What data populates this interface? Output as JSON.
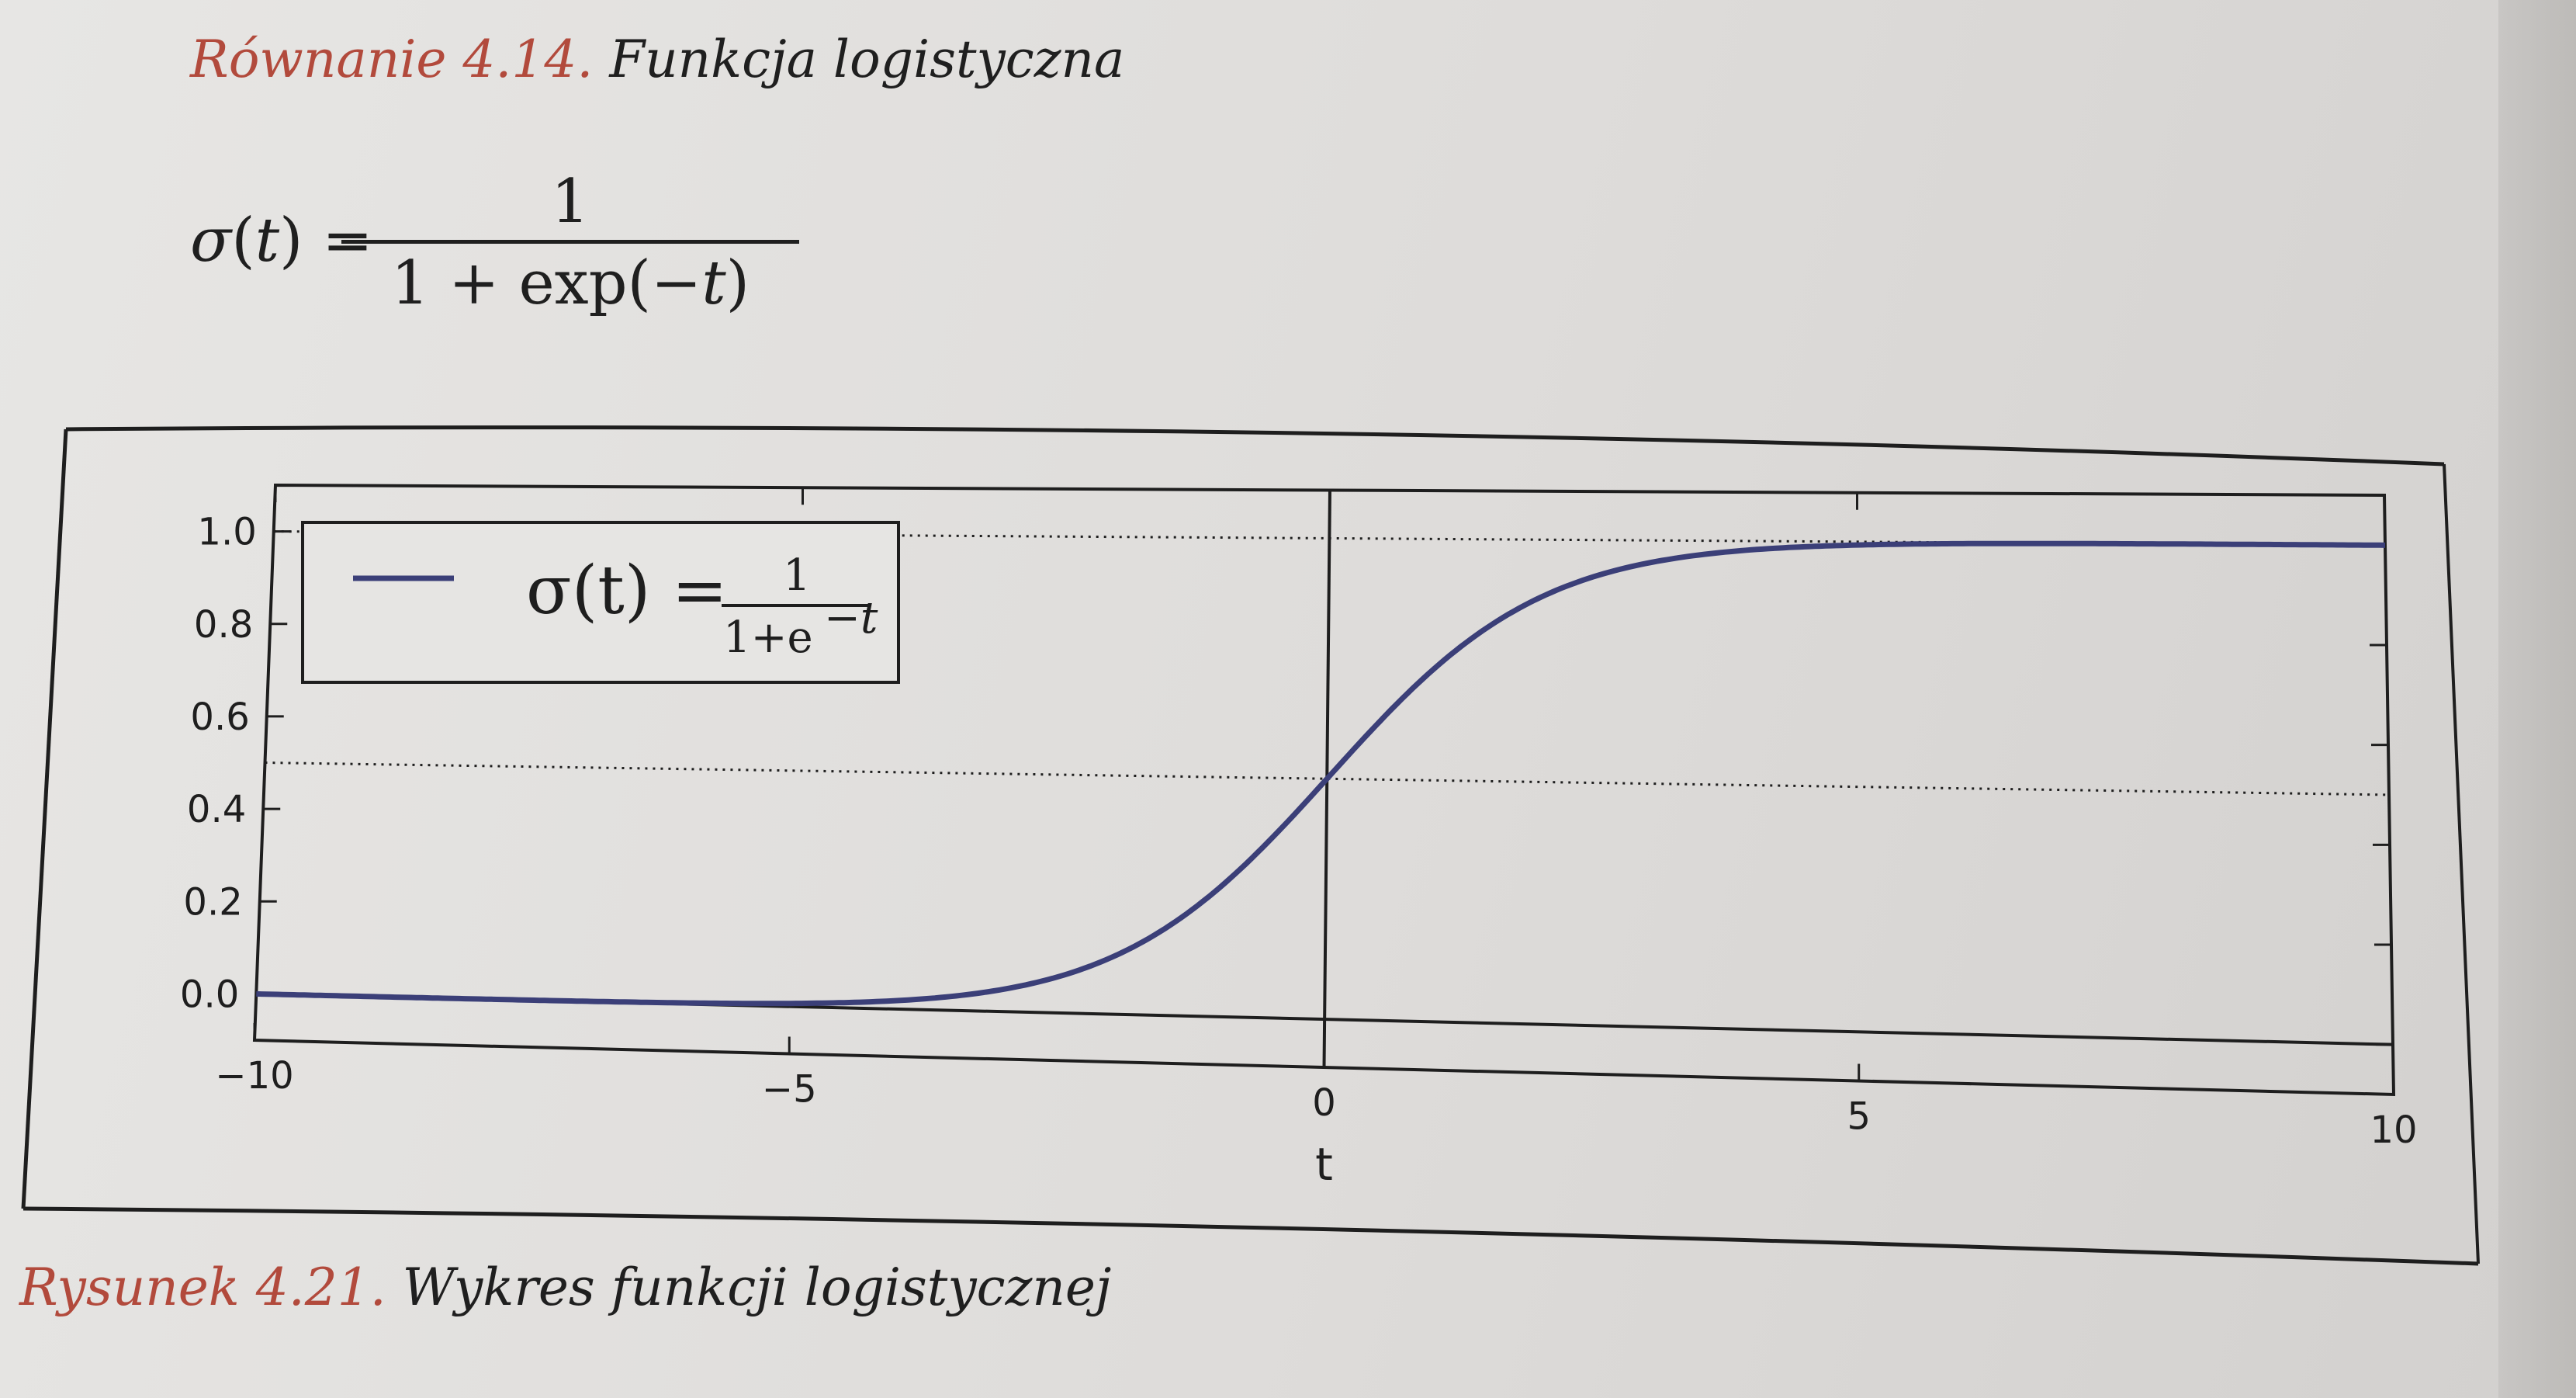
{
  "equation_caption": {
    "number": "Równanie 4.14.",
    "title": "Funkcja logistyczna"
  },
  "equation": {
    "lhs_symbol": "σ",
    "lhs_arg": "t",
    "numerator": "1",
    "denominator_prefix": "1 + exp(−",
    "denominator_arg": "t",
    "denominator_suffix": ")"
  },
  "figure": {
    "caption_number": "Rysunek 4.21.",
    "caption_title": "Wykres funkcji logistycznej"
  },
  "chart_data": {
    "type": "line",
    "title": "",
    "xlabel": "t",
    "ylabel": "",
    "xlim": [
      -10,
      10
    ],
    "ylim": [
      -0.1,
      1.1
    ],
    "x_ticks": [
      -10,
      -5,
      0,
      5,
      10
    ],
    "x_tick_labels": [
      "−10",
      "−5",
      "0",
      "5",
      "10"
    ],
    "y_ticks": [
      0.0,
      0.2,
      0.4,
      0.6,
      0.8,
      1.0
    ],
    "y_tick_labels": [
      "0.0",
      "0.2",
      "0.4",
      "0.6",
      "0.8",
      "1.0"
    ],
    "legend_placement": "upper-left",
    "series": [
      {
        "name": "σ(t) = 1 / (1+e^−t)",
        "function": "sigmoid",
        "color": "#3b3f78",
        "x": [
          -10,
          -8,
          -6,
          -5,
          -4,
          -3,
          -2,
          -1,
          0,
          1,
          2,
          3,
          4,
          5,
          6,
          8,
          10
        ],
        "y": [
          5e-05,
          0.0003,
          0.0025,
          0.0067,
          0.018,
          0.047,
          0.119,
          0.269,
          0.5,
          0.731,
          0.881,
          0.953,
          0.982,
          0.993,
          0.9975,
          0.9997,
          0.99995
        ]
      }
    ],
    "reference_lines": [
      {
        "orientation": "horizontal",
        "y": 1.0,
        "style": "dotted"
      },
      {
        "orientation": "horizontal",
        "y": 0.5,
        "style": "dotted"
      },
      {
        "orientation": "horizontal",
        "y": 0.0,
        "style": "solid"
      },
      {
        "orientation": "vertical",
        "x": 0,
        "style": "solid"
      }
    ],
    "legend": {
      "lhs": "σ(t) =",
      "numerator": "1",
      "denominator": "1+e",
      "exponent": "−t"
    }
  }
}
